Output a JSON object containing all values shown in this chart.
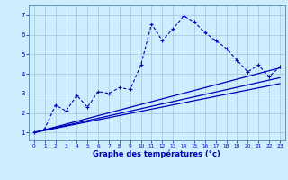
{
  "xlabel": "Graphe des températures (°c)",
  "background_color": "#cceeff",
  "line_color": "#0000bb",
  "x_ticks": [
    0,
    1,
    2,
    3,
    4,
    5,
    6,
    7,
    8,
    9,
    10,
    11,
    12,
    13,
    14,
    15,
    16,
    17,
    18,
    19,
    20,
    21,
    22,
    23
  ],
  "x_tick_labels": [
    "0",
    "1",
    "2",
    "3",
    "4",
    "5",
    "6",
    "7",
    "8",
    "9",
    "10",
    "11",
    "12",
    "13",
    "14",
    "15",
    "16",
    "17",
    "18",
    "19",
    "20",
    "21",
    "22",
    "23"
  ],
  "ylim": [
    0.6,
    7.5
  ],
  "xlim": [
    -0.5,
    23.5
  ],
  "yticks": [
    1,
    2,
    3,
    4,
    5,
    6,
    7
  ],
  "series1_x": [
    0,
    1,
    2,
    3,
    4,
    5,
    6,
    7,
    8,
    9,
    10,
    11,
    12,
    13,
    14,
    15,
    16,
    17,
    18,
    19,
    20,
    21,
    22,
    23
  ],
  "series1_y": [
    1.0,
    1.2,
    2.4,
    2.1,
    2.9,
    2.3,
    3.1,
    3.0,
    3.3,
    3.2,
    4.45,
    6.55,
    5.7,
    6.3,
    6.95,
    6.65,
    6.1,
    5.7,
    5.3,
    4.7,
    4.1,
    4.45,
    3.85,
    4.35
  ],
  "series2_x": [
    0,
    23
  ],
  "series2_y": [
    1.0,
    4.3
  ],
  "series3_x": [
    0,
    23
  ],
  "series3_y": [
    1.0,
    3.8
  ],
  "series4_x": [
    0,
    23
  ],
  "series4_y": [
    1.0,
    3.5
  ]
}
